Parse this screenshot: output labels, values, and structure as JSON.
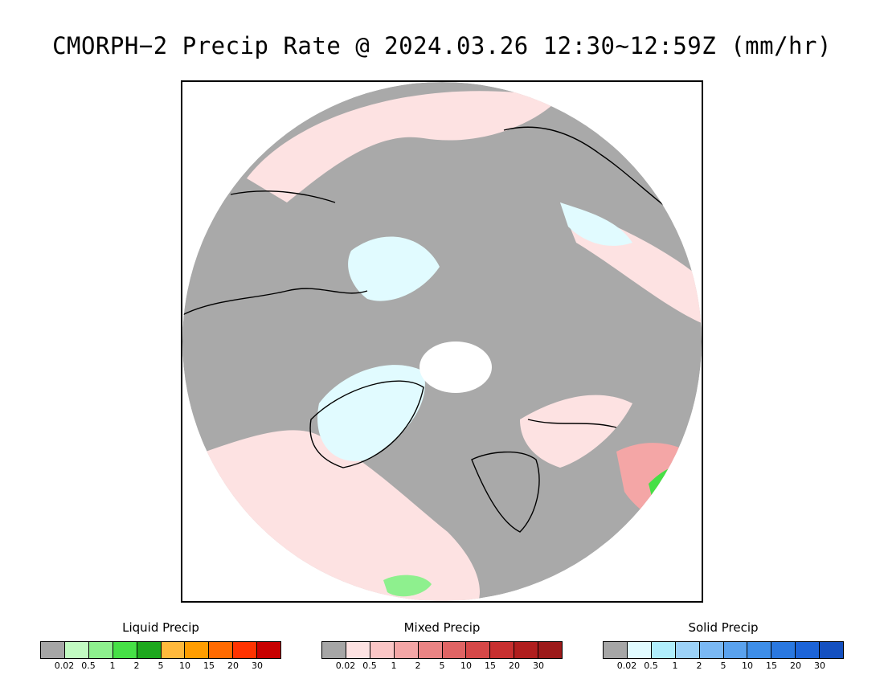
{
  "title": "CMORPH−2 Precip Rate @ 2024.03.26 12:30~12:59Z (mm/hr)",
  "map": {
    "projection": "north polar stereographic",
    "background_color": "#a9a9a9",
    "outside_color": "#ffffff",
    "coastline_color": "#000000"
  },
  "legends": [
    {
      "id": "liquid",
      "title": "Liquid Precip",
      "ticks": [
        "0.02",
        "0.5",
        "1",
        "2",
        "5",
        "10",
        "15",
        "20",
        "30"
      ],
      "colors": [
        "#a6a6a6",
        "#c2fbc2",
        "#8ef08e",
        "#46e046",
        "#1ea81e",
        "#ffb93c",
        "#ff9d00",
        "#ff6a00",
        "#ff3300",
        "#c80000"
      ]
    },
    {
      "id": "mixed",
      "title": "Mixed Precip",
      "ticks": [
        "0.02",
        "0.5",
        "1",
        "2",
        "5",
        "10",
        "15",
        "20",
        "30"
      ],
      "colors": [
        "#a6a6a6",
        "#fde2e2",
        "#fbc6c6",
        "#f4a6a6",
        "#ea8484",
        "#e06464",
        "#d64848",
        "#c83030",
        "#b01e1e",
        "#9c1a1a"
      ]
    },
    {
      "id": "solid",
      "title": "Solid Precip",
      "ticks": [
        "0.02",
        "0.5",
        "1",
        "2",
        "5",
        "10",
        "15",
        "20",
        "30"
      ],
      "colors": [
        "#a6a6a6",
        "#e1fbff",
        "#b0eefc",
        "#9cd2f8",
        "#7ab8f4",
        "#5aa2ee",
        "#3e8ee8",
        "#2a78e0",
        "#1c64d8",
        "#1450c0"
      ]
    }
  ]
}
